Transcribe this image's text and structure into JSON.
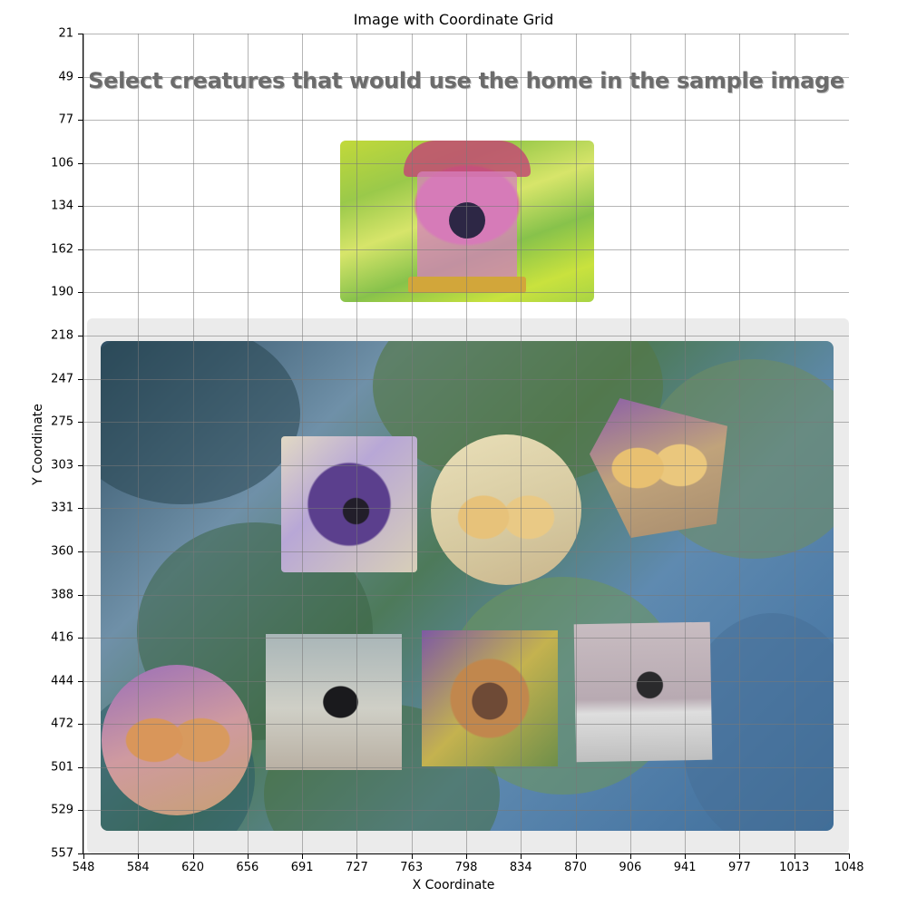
{
  "chart": {
    "title": "Image with Coordinate Grid",
    "xlabel": "X Coordinate",
    "ylabel": "Y Coordinate",
    "x_ticks": [
      "548",
      "584",
      "620",
      "656",
      "691",
      "727",
      "763",
      "798",
      "834",
      "870",
      "906",
      "941",
      "977",
      "1013",
      "1048"
    ],
    "y_ticks": [
      "21",
      "49",
      "77",
      "106",
      "134",
      "162",
      "190",
      "218",
      "247",
      "275",
      "303",
      "331",
      "360",
      "388",
      "416",
      "444",
      "472",
      "501",
      "529",
      "557"
    ]
  },
  "captcha": {
    "prompt": "Select creatures that would use the home in the sample image",
    "sample_icon": "birdhouse-icon",
    "tiles": [
      {
        "name": "goat-purple-tile",
        "icon": "goat-icon"
      },
      {
        "name": "puppies-round-tile",
        "icon": "dog-icon"
      },
      {
        "name": "puppies-poly-tile",
        "icon": "dog-icon"
      },
      {
        "name": "kittens-round-tile",
        "icon": "cat-icon"
      },
      {
        "name": "crow-tile-1",
        "icon": "bird-icon"
      },
      {
        "name": "goat-color-tile",
        "icon": "goat-icon"
      },
      {
        "name": "crow-tile-2",
        "icon": "bird-icon"
      }
    ]
  },
  "colors": {
    "prompt_text": "#6b6b6b",
    "panel_bg": "#ebebeb",
    "grid": "#888888"
  }
}
